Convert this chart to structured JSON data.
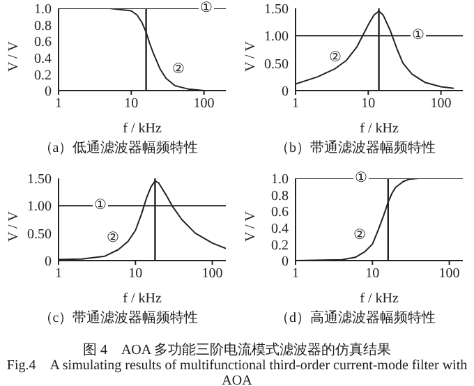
{
  "chart_data": [
    {
      "type": "line",
      "title": "（a）低通滤波器幅频特性",
      "xlabel": "f / kHz",
      "ylabel": "V / V",
      "log": "x",
      "xlim": [
        1,
        200
      ],
      "xticks": [
        1,
        10,
        100
      ],
      "ylim": [
        0,
        1
      ],
      "yticks": [
        0,
        0.2,
        0.4,
        0.6,
        0.8,
        {
          "value": 1,
          "label": "1.0"
        }
      ],
      "series": [
        {
          "name": "①",
          "color": "#222222",
          "x": [
            1,
            200
          ],
          "values": [
            1,
            1
          ]
        },
        {
          "name": "②",
          "color": "#222222",
          "x": [
            1,
            5,
            10,
            12,
            14,
            16,
            18,
            20,
            25,
            30,
            40,
            60,
            100,
            200
          ],
          "values": [
            1,
            1,
            0.97,
            0.92,
            0.83,
            0.71,
            0.57,
            0.46,
            0.26,
            0.15,
            0.06,
            0.02,
            0,
            0
          ]
        }
      ],
      "ref_lines": [
        {
          "axis": "x",
          "value": 16,
          "color": "#222222"
        }
      ]
    },
    {
      "type": "line",
      "title": "（b）带通滤波器幅频特性",
      "xlabel": "f / kHz",
      "ylabel": "V / V",
      "log": "x",
      "xlim": [
        1,
        200
      ],
      "xticks": [
        1,
        10,
        100
      ],
      "ylim": [
        0,
        1.5
      ],
      "yticks": [
        0,
        {
          "value": 0.5,
          "label": "0.50"
        },
        {
          "value": 1,
          "label": "1.00"
        },
        {
          "value": 1.5,
          "label": "1.50"
        }
      ],
      "series": [
        {
          "name": "①",
          "color": "#222222",
          "x": [
            1,
            200
          ],
          "values": [
            1,
            1
          ]
        },
        {
          "name": "②",
          "color": "#222222",
          "x": [
            1,
            2,
            3.5,
            5,
            7,
            8,
            10,
            12,
            14,
            16,
            20,
            25,
            30,
            40,
            60,
            100,
            150
          ],
          "values": [
            0.12,
            0.25,
            0.4,
            0.55,
            0.8,
            0.95,
            1.2,
            1.38,
            1.45,
            1.38,
            1.1,
            0.75,
            0.5,
            0.3,
            0.15,
            0.07,
            0.04
          ]
        }
      ],
      "ref_lines": [
        {
          "axis": "x",
          "value": 14,
          "color": "#222222"
        }
      ]
    },
    {
      "type": "line",
      "title": "（c）带通滤波器幅频特性",
      "xlabel": "f / kHz",
      "ylabel": "V / V",
      "log": "x",
      "xlim": [
        1,
        150
      ],
      "xticks": [
        1,
        10,
        100
      ],
      "ylim": [
        0,
        1.5
      ],
      "yticks": [
        0,
        {
          "value": 0.5,
          "label": "0.50"
        },
        {
          "value": 1,
          "label": "1.00"
        },
        {
          "value": 1.5,
          "label": "1.50"
        }
      ],
      "series": [
        {
          "name": "①",
          "color": "#222222",
          "x": [
            1,
            150
          ],
          "values": [
            1,
            1
          ]
        },
        {
          "name": "②",
          "color": "#222222",
          "x": [
            1,
            2,
            4,
            6,
            8,
            10,
            12,
            14,
            16,
            18,
            20,
            25,
            30,
            40,
            60,
            100,
            150
          ],
          "values": [
            0.02,
            0.03,
            0.08,
            0.2,
            0.35,
            0.55,
            0.85,
            1.15,
            1.35,
            1.45,
            1.42,
            1.2,
            1,
            0.75,
            0.5,
            0.32,
            0.22
          ]
        }
      ],
      "ref_lines": [
        {
          "axis": "x",
          "value": 18,
          "color": "#222222"
        }
      ]
    },
    {
      "type": "line",
      "title": "（d）高通滤波器幅频特性",
      "xlabel": "f / kHz",
      "ylabel": "V / V",
      "log": "x",
      "xlim": [
        1,
        150
      ],
      "xticks": [
        1,
        10,
        100
      ],
      "ylim": [
        0,
        1
      ],
      "yticks": [
        0,
        0.2,
        0.4,
        0.6,
        0.8,
        {
          "value": 1,
          "label": "1.0"
        }
      ],
      "series": [
        {
          "name": "①",
          "color": "#222222",
          "x": [
            1,
            150
          ],
          "values": [
            1,
            1
          ]
        },
        {
          "name": "②",
          "color": "#222222",
          "x": [
            1,
            4,
            6,
            8,
            10,
            12,
            14,
            16,
            18,
            20,
            25,
            30,
            40,
            150
          ],
          "values": [
            0,
            0.01,
            0.04,
            0.11,
            0.2,
            0.38,
            0.55,
            0.71,
            0.82,
            0.89,
            0.96,
            0.99,
            1,
            1
          ]
        }
      ],
      "ref_lines": [
        {
          "axis": "x",
          "value": 16,
          "color": "#222222"
        }
      ],
      "annotations": [
        "图 4　AOA 多功能三阶电流模式滤波器的仿真结果",
        "Fig.4　A simulating results of multifunctional third-order current-mode filter with AOA"
      ]
    }
  ]
}
